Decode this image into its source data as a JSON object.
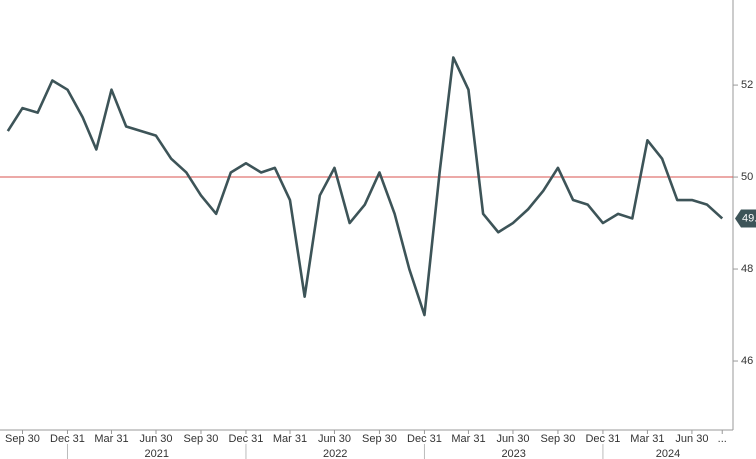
{
  "chart_data": {
    "type": "line",
    "x": [
      "2020-08-31",
      "2020-09-30",
      "2020-10-31",
      "2020-11-30",
      "2020-12-31",
      "2021-01-31",
      "2021-02-28",
      "2021-03-31",
      "2021-04-30",
      "2021-05-31",
      "2021-06-30",
      "2021-07-31",
      "2021-08-31",
      "2021-09-30",
      "2021-10-31",
      "2021-11-30",
      "2021-12-31",
      "2022-01-31",
      "2022-02-28",
      "2022-03-31",
      "2022-04-30",
      "2022-05-31",
      "2022-06-30",
      "2022-07-31",
      "2022-08-31",
      "2022-09-30",
      "2022-10-31",
      "2022-11-30",
      "2022-12-31",
      "2023-01-31",
      "2023-02-28",
      "2023-03-31",
      "2023-04-30",
      "2023-05-31",
      "2023-06-30",
      "2023-07-31",
      "2023-08-31",
      "2023-09-30",
      "2023-10-31",
      "2023-11-30",
      "2023-12-31",
      "2024-01-31",
      "2024-02-29",
      "2024-03-31",
      "2024-04-30",
      "2024-05-31",
      "2024-06-30",
      "2024-07-31",
      "2024-08-31"
    ],
    "series": [
      {
        "color": "#3d5458",
        "values": [
          51.0,
          51.5,
          51.4,
          52.1,
          51.9,
          51.3,
          50.6,
          51.9,
          51.1,
          51.0,
          50.9,
          50.4,
          50.1,
          49.6,
          49.2,
          50.1,
          50.3,
          50.1,
          50.2,
          49.5,
          47.4,
          49.6,
          50.2,
          49.0,
          49.4,
          50.1,
          49.2,
          48.0,
          47.0,
          50.1,
          52.6,
          51.9,
          49.2,
          48.8,
          49.0,
          49.3,
          49.7,
          50.2,
          49.5,
          49.4,
          49.0,
          49.2,
          49.1,
          50.8,
          50.4,
          49.5,
          49.5,
          49.4,
          49.1
        ]
      }
    ],
    "last_value_label": "49.",
    "reference_line": {
      "value": 50,
      "color": "#d9534f"
    },
    "xlim": [
      "2020-08-15",
      "2024-09-22"
    ],
    "xticks": [
      {
        "value": "2020-09-30",
        "label": "Sep 30"
      },
      {
        "value": "2020-12-31",
        "label": "Dec 31"
      },
      {
        "value": "2021-03-31",
        "label": "Mar 31"
      },
      {
        "value": "2021-06-30",
        "label": "Jun 30"
      },
      {
        "value": "2021-09-30",
        "label": "Sep 30"
      },
      {
        "value": "2021-12-31",
        "label": "Dec 31"
      },
      {
        "value": "2022-03-31",
        "label": "Mar 31"
      },
      {
        "value": "2022-06-30",
        "label": "Jun 30"
      },
      {
        "value": "2022-09-30",
        "label": "Sep 30"
      },
      {
        "value": "2022-12-31",
        "label": "Dec 31"
      },
      {
        "value": "2023-03-31",
        "label": "Mar 31"
      },
      {
        "value": "2023-06-30",
        "label": "Jun 30"
      },
      {
        "value": "2023-09-30",
        "label": "Sep 30"
      },
      {
        "value": "2023-12-31",
        "label": "Dec 31"
      },
      {
        "value": "2024-03-31",
        "label": "Mar 31"
      },
      {
        "value": "2024-06-30",
        "label": "Jun 30"
      },
      {
        "value": "2024-08-31",
        "label": "..."
      }
    ],
    "xgroups": [
      {
        "label": "2021",
        "start": "2020-12-31",
        "end": "2021-12-31"
      },
      {
        "label": "2022",
        "start": "2021-12-31",
        "end": "2022-12-31"
      },
      {
        "label": "2023",
        "start": "2022-12-31",
        "end": "2023-12-31"
      },
      {
        "label": "2024",
        "start": "2023-12-31",
        "end": "2024-09-22"
      }
    ],
    "ylim": [
      44.5,
      53.85
    ],
    "yticks": [
      46,
      48,
      50,
      52
    ]
  }
}
